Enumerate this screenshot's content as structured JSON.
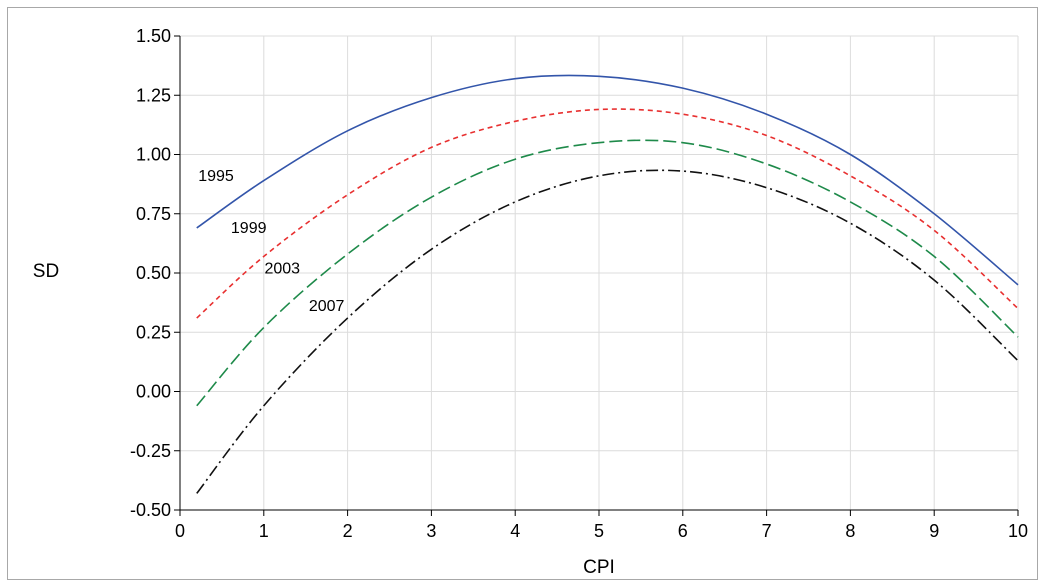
{
  "chart_data": {
    "type": "line",
    "title": "",
    "xlabel": "CPI",
    "ylabel": "SD",
    "xlim": [
      0,
      10
    ],
    "ylim": [
      -0.5,
      1.5
    ],
    "x_ticks": [
      "0",
      "1",
      "2",
      "3",
      "4",
      "5",
      "6",
      "7",
      "8",
      "9",
      "10"
    ],
    "y_ticks": [
      "1.50",
      "1.25",
      "1.00",
      "0.75",
      "0.50",
      "0.25",
      "0.00",
      "-0.25",
      "-0.50"
    ],
    "grid": true,
    "legend": "none",
    "x": [
      0.2,
      1,
      2,
      3,
      4,
      5,
      6,
      7,
      8,
      9,
      10
    ],
    "series": [
      {
        "name": "1995",
        "color": "#3355aa",
        "dash": "solid",
        "values": [
          0.69,
          0.89,
          1.1,
          1.24,
          1.32,
          1.33,
          1.28,
          1.17,
          1.0,
          0.75,
          0.45
        ]
      },
      {
        "name": "1999",
        "color": "#e83030",
        "dash": "short-dash",
        "values": [
          0.31,
          0.57,
          0.83,
          1.03,
          1.14,
          1.19,
          1.17,
          1.08,
          0.91,
          0.68,
          0.35
        ]
      },
      {
        "name": "2003",
        "color": "#1e8a4a",
        "dash": "long-dash",
        "values": [
          -0.06,
          0.27,
          0.58,
          0.82,
          0.98,
          1.05,
          1.05,
          0.96,
          0.8,
          0.57,
          0.23
        ]
      },
      {
        "name": "2007",
        "color": "#111111",
        "dash": "dash-dot",
        "values": [
          -0.43,
          -0.06,
          0.31,
          0.6,
          0.8,
          0.91,
          0.93,
          0.86,
          0.71,
          0.47,
          0.13
        ]
      }
    ],
    "annotations": [
      {
        "text": "1995",
        "x": 0.43,
        "y": 0.91
      },
      {
        "text": "1999",
        "x": 0.82,
        "y": 0.69
      },
      {
        "text": "2003",
        "x": 1.22,
        "y": 0.52
      },
      {
        "text": "2007",
        "x": 1.75,
        "y": 0.36
      }
    ]
  }
}
